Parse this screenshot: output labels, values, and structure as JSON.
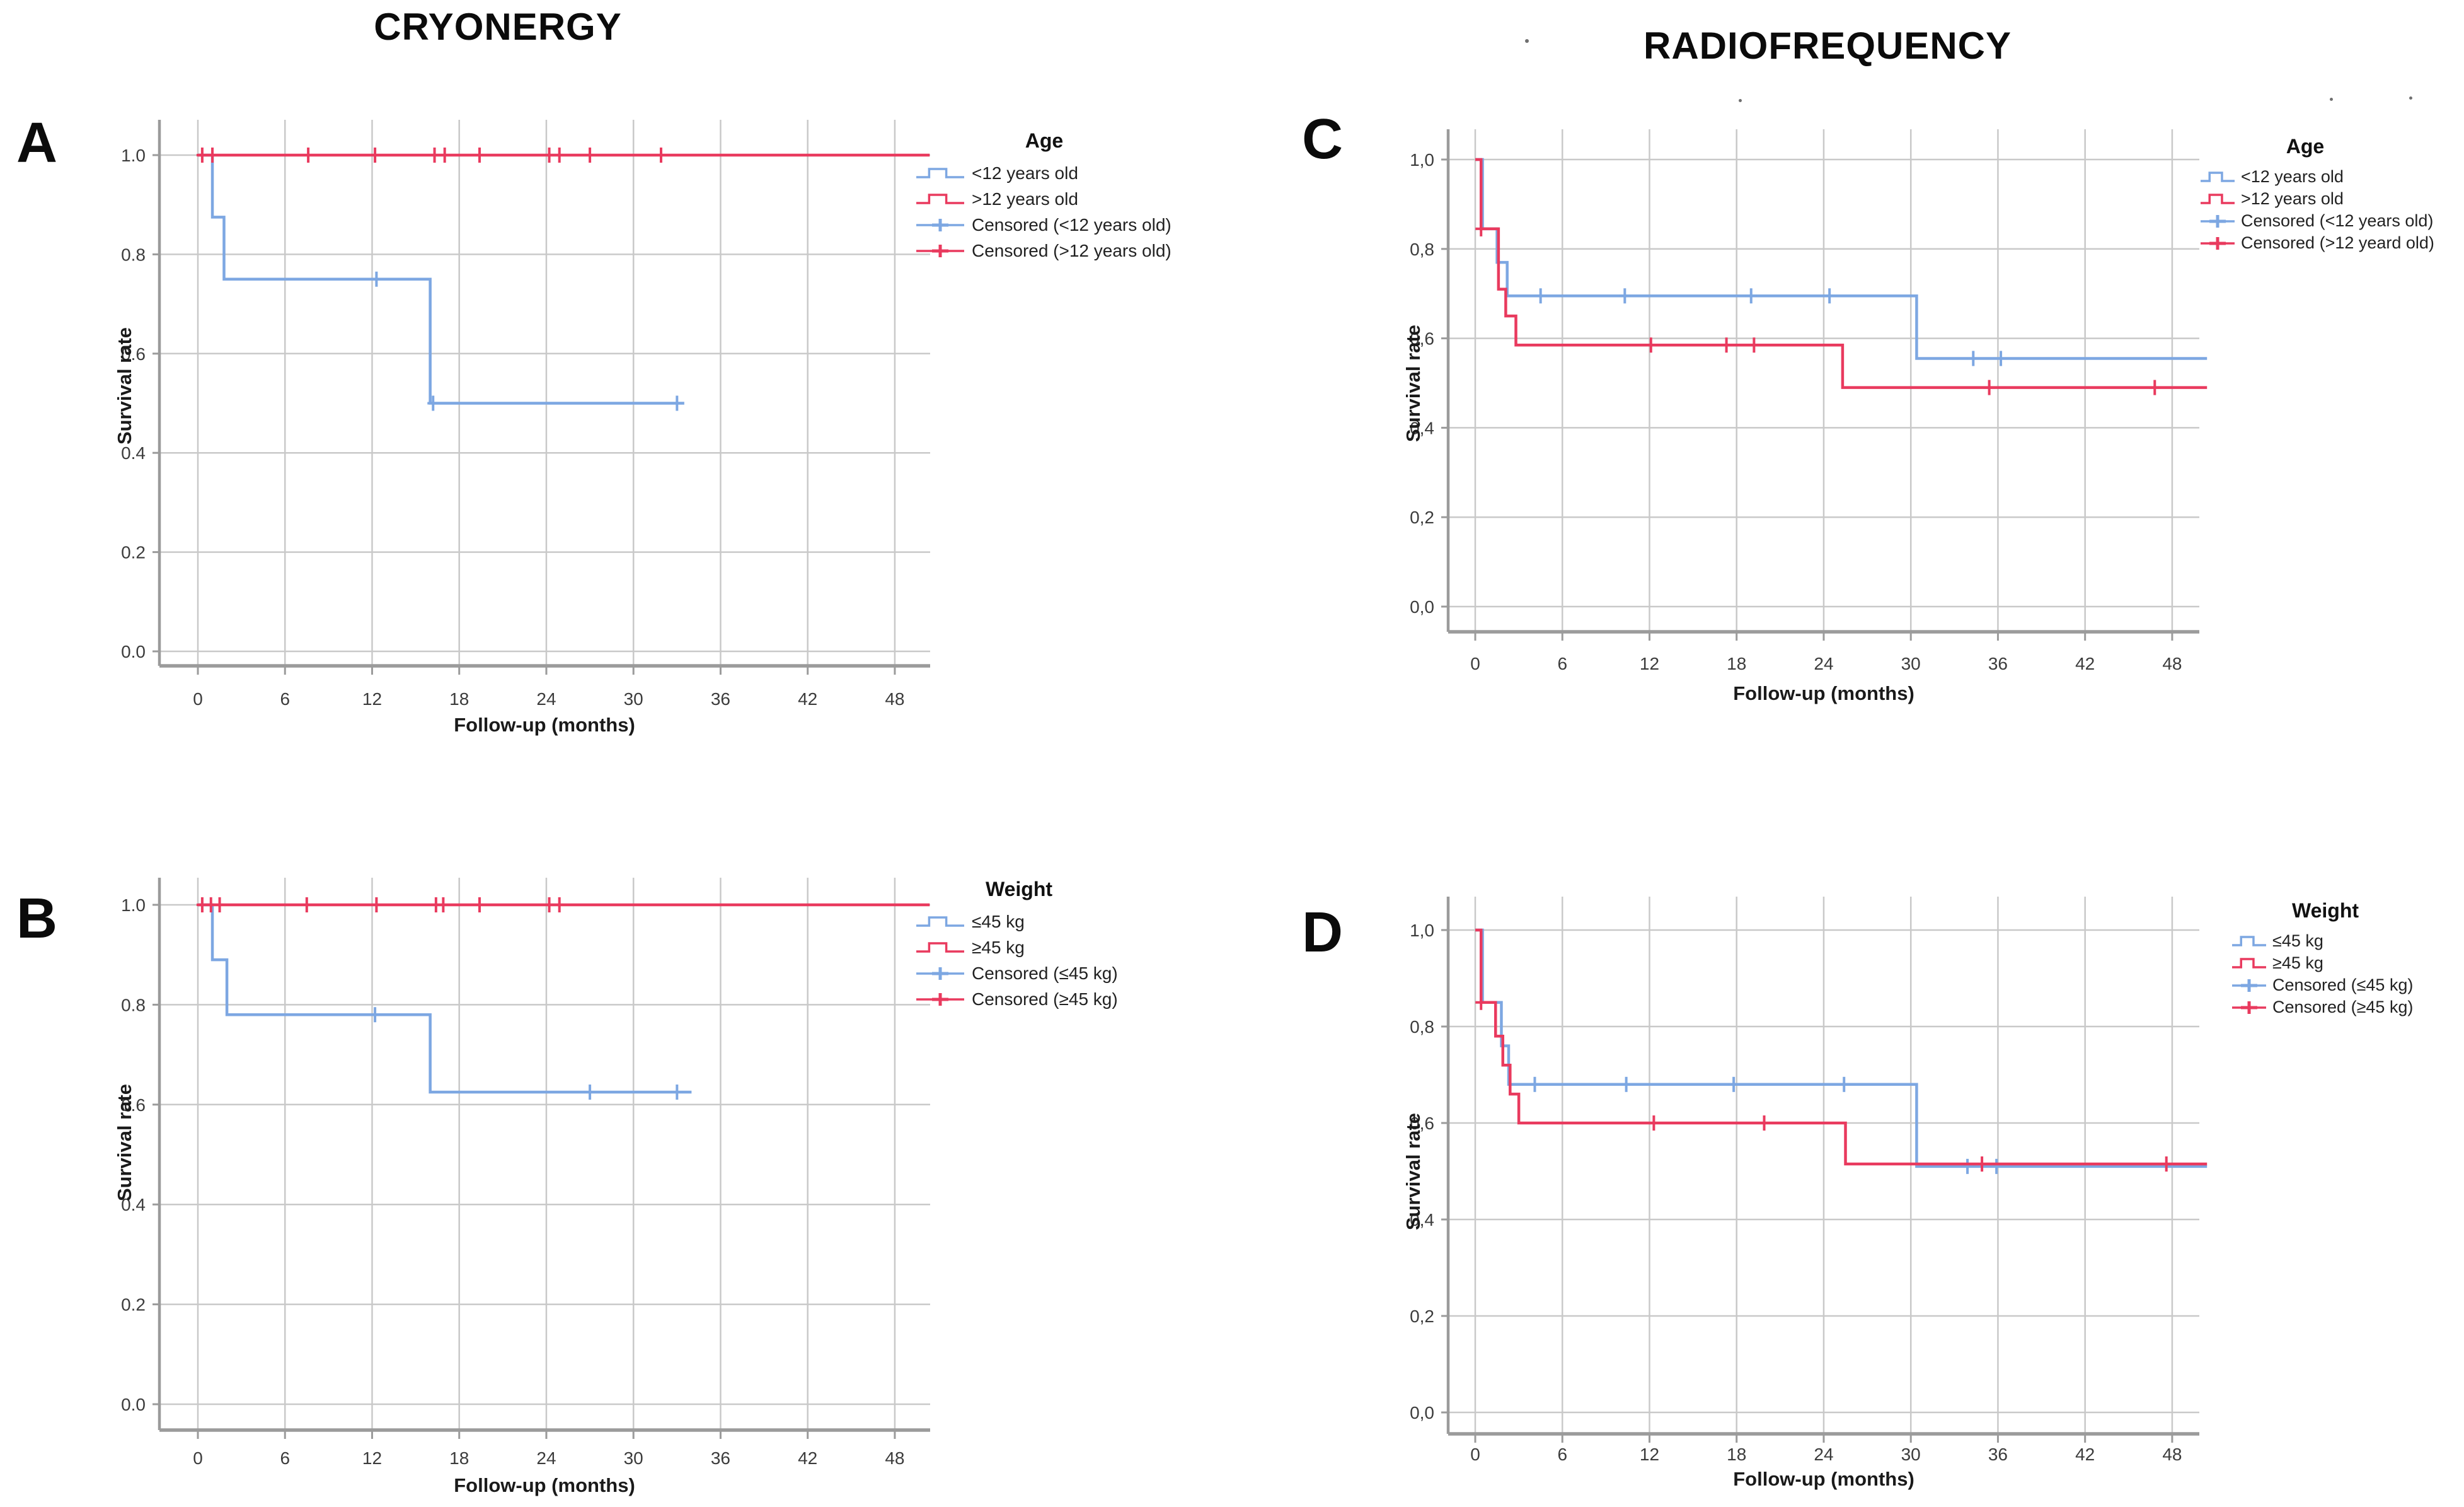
{
  "figure": {
    "column_titles": [
      {
        "text": "CRYONERGY"
      },
      {
        "text": "RADIOFREQUENCY"
      }
    ],
    "axis": {
      "x_label": "Follow-up (months)",
      "y_label": "Survival rate",
      "x_ticks": [
        0,
        6,
        12,
        18,
        24,
        30,
        36,
        42,
        48
      ],
      "y_ticks": [
        1.0,
        0.8,
        0.6,
        0.4,
        0.2,
        0.0
      ],
      "x_range": [
        -2.6,
        50.5
      ],
      "grid": true
    },
    "colors": {
      "blue": "#7da7e2",
      "red": "#e93a5e",
      "grid": "#c9c9c9",
      "axis": "#9b9b9b",
      "tick_text": "#3c3c3c"
    }
  },
  "chart_data": {
    "type": "line",
    "subtype": "kaplan-meier-step-curves",
    "panels": [
      {
        "letter": "A",
        "column": "CRYONERGY",
        "y_tick_labels": [
          "1.0",
          "0.8",
          "0.6",
          "0.4",
          "0.2",
          "0.0"
        ],
        "legend": {
          "title": "Age",
          "items": [
            {
              "label": "<12 years old",
              "marker": "line",
              "color": "blue"
            },
            {
              "label": ">12 years old",
              "marker": "line",
              "color": "red"
            },
            {
              "label": "Censored (<12 years old)",
              "marker": "censor",
              "color": "blue"
            },
            {
              "label": "Censored (>12 years old)",
              "marker": "censor",
              "color": "red"
            }
          ]
        },
        "series": [
          {
            "name": "<12 years old",
            "color": "blue",
            "steps": [
              [
                0,
                1
              ],
              [
                1,
                1
              ],
              [
                1,
                0.875
              ],
              [
                1.8,
                0.875
              ],
              [
                1.8,
                0.75
              ],
              [
                16,
                0.75
              ],
              [
                16,
                0.5
              ],
              [
                33.5,
                0.5
              ]
            ],
            "censors": [
              [
                12.3,
                0.75
              ],
              [
                16.2,
                0.5
              ],
              [
                33,
                0.5
              ]
            ]
          },
          {
            "name": ">12 years old",
            "color": "red",
            "steps": [
              [
                0,
                1
              ],
              [
                50.4,
                1
              ]
            ],
            "censors": [
              [
                0.3,
                1
              ],
              [
                1,
                1
              ],
              [
                7.6,
                1
              ],
              [
                12.2,
                1
              ],
              [
                16.3,
                1
              ],
              [
                17,
                1
              ],
              [
                19.4,
                1
              ],
              [
                24.2,
                1
              ],
              [
                24.9,
                1
              ],
              [
                27,
                1
              ],
              [
                31.9,
                1
              ]
            ]
          }
        ]
      },
      {
        "letter": "B",
        "column": "CRYONERGY",
        "y_tick_labels": [
          "1.0",
          "0.8",
          "0.6",
          "0.4",
          "0.2",
          "0.0"
        ],
        "legend": {
          "title": "Weight",
          "items": [
            {
              "label": "≤45 kg",
              "marker": "line",
              "color": "blue"
            },
            {
              "label": "≥45 kg",
              "marker": "line",
              "color": "red"
            },
            {
              "label": "Censored (≤45 kg)",
              "marker": "censor",
              "color": "blue"
            },
            {
              "label": "Censored (≥45 kg)",
              "marker": "censor",
              "color": "red"
            }
          ]
        },
        "series": [
          {
            "name": "≤45 kg",
            "color": "blue",
            "steps": [
              [
                0,
                1
              ],
              [
                1,
                1
              ],
              [
                1,
                0.89
              ],
              [
                2,
                0.89
              ],
              [
                2,
                0.78
              ],
              [
                16,
                0.78
              ],
              [
                16,
                0.625
              ],
              [
                34,
                0.625
              ]
            ],
            "censors": [
              [
                12.2,
                0.78
              ],
              [
                27,
                0.625
              ],
              [
                33,
                0.625
              ]
            ]
          },
          {
            "name": "≥45 kg",
            "color": "red",
            "steps": [
              [
                0,
                1
              ],
              [
                50.4,
                1
              ]
            ],
            "censors": [
              [
                0.3,
                1
              ],
              [
                0.9,
                1
              ],
              [
                1.5,
                1
              ],
              [
                7.5,
                1
              ],
              [
                12.3,
                1
              ],
              [
                16.4,
                1
              ],
              [
                16.9,
                1
              ],
              [
                19.4,
                1
              ],
              [
                24.2,
                1
              ],
              [
                24.9,
                1
              ]
            ]
          }
        ]
      },
      {
        "letter": "C",
        "column": "RADIOFREQUENCY",
        "y_tick_labels": [
          "1,0",
          "0,8",
          "0,6",
          "0,4",
          "0,2",
          "0,0"
        ],
        "legend": {
          "title": "Age",
          "items": [
            {
              "label": "<12 years old",
              "marker": "line",
              "color": "blue"
            },
            {
              "label": ">12 years old",
              "marker": "line",
              "color": "red"
            },
            {
              "label": "Censored (<12 years old)",
              "marker": "censor",
              "color": "blue"
            },
            {
              "label": "Censored (>12 yeard old)",
              "marker": "censor",
              "color": "red"
            }
          ]
        },
        "series": [
          {
            "name": "<12 years old",
            "color": "blue",
            "steps": [
              [
                0,
                1
              ],
              [
                0.5,
                1
              ],
              [
                0.5,
                0.845
              ],
              [
                1.5,
                0.845
              ],
              [
                1.5,
                0.77
              ],
              [
                2.2,
                0.77
              ],
              [
                2.2,
                0.695
              ],
              [
                30.4,
                0.695
              ],
              [
                30.4,
                0.555
              ],
              [
                50.4,
                0.555
              ]
            ],
            "censors": [
              [
                4.5,
                0.695
              ],
              [
                10.3,
                0.695
              ],
              [
                19,
                0.695
              ],
              [
                24.4,
                0.695
              ],
              [
                34.3,
                0.555
              ],
              [
                36.2,
                0.555
              ]
            ]
          },
          {
            "name": ">12 years old",
            "color": "red",
            "steps": [
              [
                0,
                1
              ],
              [
                0.4,
                1
              ],
              [
                0.4,
                0.845
              ],
              [
                1.6,
                0.845
              ],
              [
                1.6,
                0.71
              ],
              [
                2.1,
                0.71
              ],
              [
                2.1,
                0.65
              ],
              [
                2.8,
                0.65
              ],
              [
                2.8,
                0.585
              ],
              [
                25.3,
                0.585
              ],
              [
                25.3,
                0.49
              ],
              [
                50.4,
                0.49
              ]
            ],
            "censors": [
              [
                0.4,
                0.845
              ],
              [
                12.1,
                0.585
              ],
              [
                17.3,
                0.585
              ],
              [
                19.2,
                0.585
              ],
              [
                35.4,
                0.49
              ],
              [
                46.8,
                0.49
              ]
            ]
          }
        ]
      },
      {
        "letter": "D",
        "column": "RADIOFREQUENCY",
        "y_tick_labels": [
          "1,0",
          "0,8",
          "0,6",
          "0,4",
          "0,2",
          "0,0"
        ],
        "legend": {
          "title": "Weight",
          "items": [
            {
              "label": "≤45 kg",
              "marker": "line",
              "color": "blue"
            },
            {
              "label": "≥45 kg",
              "marker": "line",
              "color": "red"
            },
            {
              "label": "Censored (≤45 kg)",
              "marker": "censor",
              "color": "blue"
            },
            {
              "label": "Censored (≥45 kg)",
              "marker": "censor",
              "color": "red"
            }
          ]
        },
        "series": [
          {
            "name": "≤45 kg",
            "color": "blue",
            "steps": [
              [
                0,
                1
              ],
              [
                0.5,
                1
              ],
              [
                0.5,
                0.85
              ],
              [
                1.8,
                0.85
              ],
              [
                1.8,
                0.76
              ],
              [
                2.3,
                0.76
              ],
              [
                2.3,
                0.68
              ],
              [
                30.4,
                0.68
              ],
              [
                30.4,
                0.51
              ],
              [
                50.4,
                0.51
              ]
            ],
            "censors": [
              [
                4.1,
                0.68
              ],
              [
                10.4,
                0.68
              ],
              [
                17.8,
                0.68
              ],
              [
                25.4,
                0.68
              ],
              [
                33.9,
                0.51
              ],
              [
                35.9,
                0.51
              ]
            ]
          },
          {
            "name": "≥45 kg",
            "color": "red",
            "steps": [
              [
                0,
                1
              ],
              [
                0.4,
                1
              ],
              [
                0.4,
                0.85
              ],
              [
                1.4,
                0.85
              ],
              [
                1.4,
                0.78
              ],
              [
                1.9,
                0.78
              ],
              [
                1.9,
                0.72
              ],
              [
                2.4,
                0.72
              ],
              [
                2.4,
                0.66
              ],
              [
                3,
                0.66
              ],
              [
                3,
                0.6
              ],
              [
                25.5,
                0.6
              ],
              [
                25.5,
                0.515
              ],
              [
                50.4,
                0.515
              ]
            ],
            "censors": [
              [
                0.4,
                0.85
              ],
              [
                12.3,
                0.6
              ],
              [
                19.9,
                0.6
              ],
              [
                34.9,
                0.515
              ],
              [
                47.6,
                0.515
              ]
            ]
          }
        ]
      }
    ]
  }
}
